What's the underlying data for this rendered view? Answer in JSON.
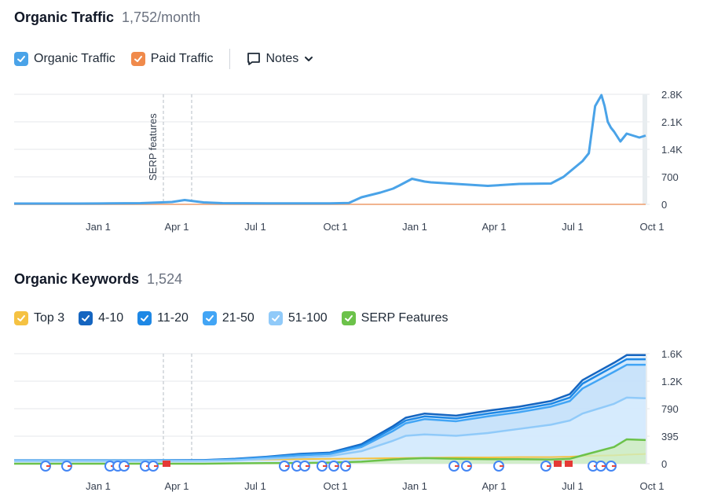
{
  "traffic": {
    "title": "Organic Traffic",
    "value": "1,752/month",
    "legend": {
      "organic": "Organic Traffic",
      "paid": "Paid Traffic",
      "notes": "Notes"
    },
    "colors": {
      "organic": "#4aa3e8",
      "paid": "#f08a4b"
    }
  },
  "keywords": {
    "title": "Organic Keywords",
    "value": "1,524",
    "legend": [
      "Top 3",
      "4-10",
      "11-20",
      "21-50",
      "51-100",
      "SERP Features"
    ],
    "colors": [
      "#f5c242",
      "#1565c0",
      "#1e88e5",
      "#42a5f5",
      "#90caf9",
      "#6cc24a"
    ]
  },
  "chart_data": [
    {
      "type": "line",
      "title": "Organic Traffic",
      "x_ticks": [
        "Jan 1",
        "Apr 1",
        "Jul 1",
        "Oct 1",
        "Jan 1",
        "Apr 1",
        "Jul 1",
        "Oct 1"
      ],
      "y_ticks": [
        "0",
        "700",
        "1.4K",
        "2.1K",
        "2.8K"
      ],
      "ylim": [
        0,
        2800
      ],
      "annotation": "SERP features",
      "series": [
        {
          "name": "Organic Traffic",
          "x": [
            0,
            0.05,
            0.1,
            0.15,
            0.2,
            0.25,
            0.27,
            0.3,
            0.33,
            0.4,
            0.45,
            0.5,
            0.53,
            0.55,
            0.58,
            0.6,
            0.61,
            0.63,
            0.65,
            0.66,
            0.7,
            0.75,
            0.8,
            0.85,
            0.87,
            0.9,
            0.91,
            0.92,
            0.93,
            0.935,
            0.94,
            0.945,
            0.95,
            0.96,
            0.97,
            0.98,
            0.99,
            1
          ],
          "values": [
            20,
            20,
            20,
            25,
            30,
            60,
            110,
            50,
            30,
            25,
            25,
            25,
            35,
            180,
            300,
            400,
            480,
            650,
            580,
            560,
            520,
            470,
            520,
            530,
            700,
            1100,
            1300,
            2500,
            2780,
            2500,
            2100,
            1950,
            1850,
            1600,
            1800,
            1750,
            1700,
            1750
          ]
        },
        {
          "name": "Paid Traffic",
          "x": [
            0,
            1
          ],
          "values": [
            0,
            0
          ]
        }
      ]
    },
    {
      "type": "area",
      "title": "Organic Keywords",
      "x_ticks": [
        "Jan 1",
        "Apr 1",
        "Jul 1",
        "Oct 1",
        "Jan 1",
        "Apr 1",
        "Jul 1",
        "Oct 1"
      ],
      "y_ticks": [
        "0",
        "395",
        "790",
        "1.2K",
        "1.6K"
      ],
      "ylim": [
        0,
        1580
      ],
      "x": [
        0,
        0.1,
        0.2,
        0.3,
        0.35,
        0.4,
        0.45,
        0.5,
        0.55,
        0.6,
        0.62,
        0.65,
        0.7,
        0.75,
        0.8,
        0.85,
        0.88,
        0.9,
        0.95,
        0.97,
        1
      ],
      "series": [
        {
          "name": "Top 3",
          "values": [
            45,
            45,
            45,
            45,
            55,
            60,
            65,
            70,
            75,
            80,
            82,
            85,
            90,
            90,
            95,
            95,
            100,
            110,
            120,
            130,
            140
          ]
        },
        {
          "name": "4-10",
          "values": [
            50,
            50,
            50,
            52,
            70,
            100,
            140,
            160,
            280,
            540,
            660,
            720,
            690,
            760,
            820,
            900,
            1000,
            1200,
            1450,
            1560,
            1560
          ]
        },
        {
          "name": "11-20",
          "values": [
            48,
            48,
            48,
            50,
            65,
            95,
            130,
            150,
            260,
            510,
            620,
            680,
            650,
            720,
            780,
            860,
            950,
            1150,
            1400,
            1500,
            1500
          ]
        },
        {
          "name": "21-50",
          "values": [
            45,
            45,
            45,
            47,
            60,
            90,
            120,
            140,
            240,
            470,
            580,
            640,
            610,
            680,
            740,
            820,
            900,
            1080,
            1320,
            1420,
            1420
          ]
        },
        {
          "name": "51-100",
          "values": [
            40,
            40,
            40,
            42,
            50,
            70,
            90,
            110,
            180,
            330,
            400,
            420,
            400,
            440,
            500,
            560,
            620,
            720,
            860,
            950,
            940
          ]
        },
        {
          "name": "SERP Features",
          "values": [
            0,
            0,
            0,
            0,
            5,
            8,
            10,
            15,
            30,
            60,
            70,
            80,
            70,
            65,
            65,
            60,
            70,
            120,
            240,
            350,
            340
          ]
        }
      ]
    }
  ]
}
